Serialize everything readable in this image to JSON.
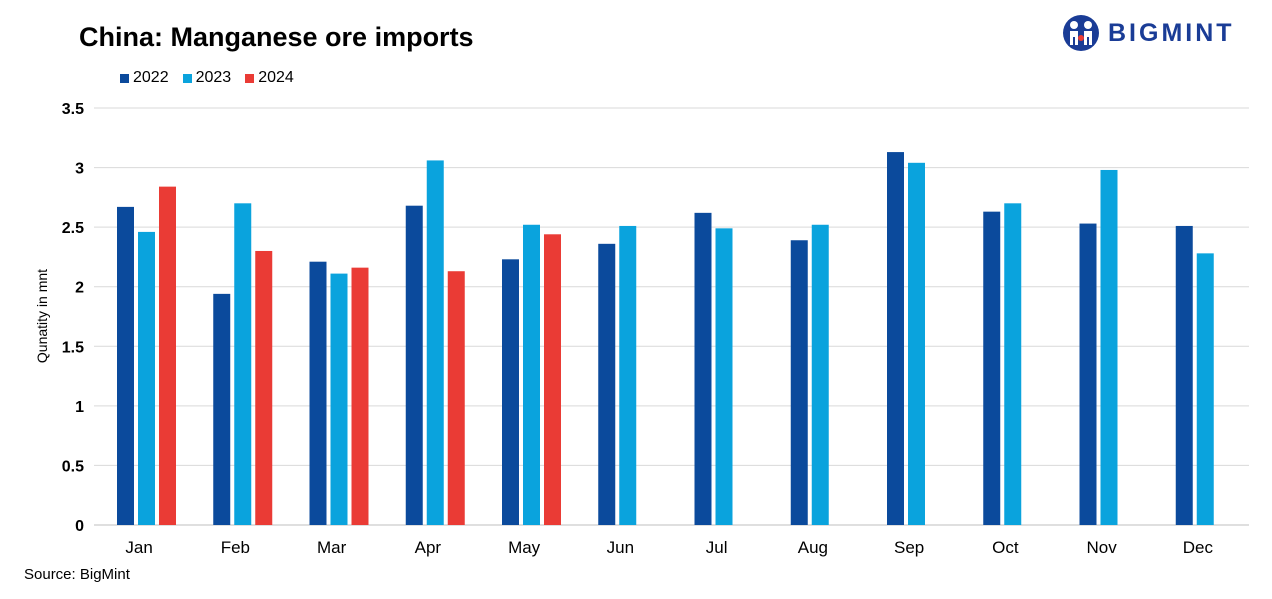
{
  "header": {
    "title": "China: Manganese ore imports"
  },
  "logo": {
    "text": "BIGMINT",
    "color": "#1a3c96"
  },
  "footer": {
    "source": "Source: BigMint"
  },
  "chart_data": {
    "type": "bar",
    "title": "China: Manganese ore imports",
    "xlabel": "",
    "ylabel": "Qunatity in mnt",
    "ylim": [
      0,
      3.5
    ],
    "yticks": [
      0,
      0.5,
      1,
      1.5,
      2,
      2.5,
      3,
      3.5
    ],
    "ytick_labels": [
      "0",
      "0.5",
      "1",
      "1.5",
      "2",
      "2.5",
      "3",
      "3.5"
    ],
    "grid": true,
    "legend_position": "top-left",
    "categories": [
      "Jan",
      "Feb",
      "Mar",
      "Apr",
      "May",
      "Jun",
      "Jul",
      "Aug",
      "Sep",
      "Oct",
      "Nov",
      "Dec"
    ],
    "series": [
      {
        "name": "2022",
        "color": "#0b4a9c",
        "values": [
          2.67,
          1.94,
          2.21,
          2.68,
          2.23,
          2.36,
          2.62,
          2.39,
          3.13,
          2.63,
          2.53,
          2.51
        ]
      },
      {
        "name": "2023",
        "color": "#0aa3dd",
        "values": [
          2.46,
          2.7,
          2.11,
          3.06,
          2.52,
          2.51,
          2.49,
          2.52,
          3.04,
          2.7,
          2.98,
          2.28
        ]
      },
      {
        "name": "2024",
        "color": "#ea3b35",
        "values": [
          2.84,
          2.3,
          2.16,
          2.13,
          2.44,
          null,
          null,
          null,
          null,
          null,
          null,
          null
        ]
      }
    ]
  }
}
